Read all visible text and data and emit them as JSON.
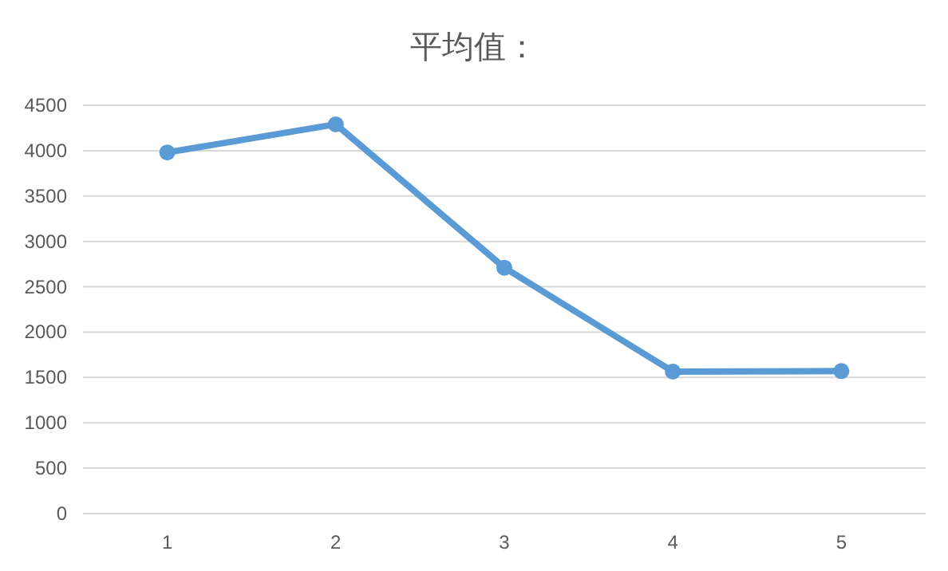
{
  "chart_data": {
    "type": "line",
    "title": "平均值：",
    "categories": [
      "1",
      "2",
      "3",
      "4",
      "5"
    ],
    "series": [
      {
        "color": "#5b9bd5",
        "values": [
          3980,
          4290,
          2710,
          1565,
          1570
        ]
      }
    ],
    "ylim": [
      0,
      4500
    ],
    "yticks": [
      0,
      500,
      1000,
      1500,
      2000,
      2500,
      3000,
      3500,
      4000,
      4500
    ],
    "grid": "y",
    "marker": "circle",
    "line_style": "solid"
  }
}
